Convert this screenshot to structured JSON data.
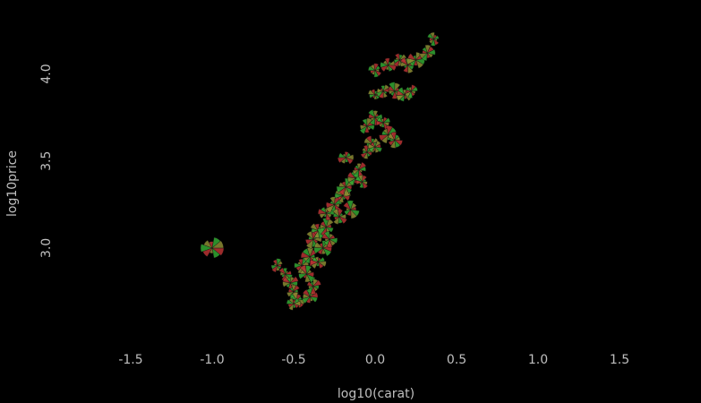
{
  "chart_data": {
    "type": "scatter",
    "xlabel": "log10(carat)",
    "ylabel": "log10price",
    "xlim": [
      -2.0,
      2.0
    ],
    "ylim": [
      2.47,
      4.27
    ],
    "x_ticks": [
      "-1.5",
      "-1.0",
      "-0.5",
      "0.0",
      "0.5",
      "1.0",
      "1.5"
    ],
    "x_tick_values": [
      -1.5,
      -1.0,
      -0.5,
      0.0,
      0.5,
      1.0,
      1.5
    ],
    "y_ticks": [
      "3.0",
      "3.5",
      "4.0"
    ],
    "y_tick_values": [
      3.0,
      3.5,
      4.0
    ],
    "background": "#000000",
    "grid": false,
    "glyph": "star",
    "colors": [
      "#b83232",
      "#32a832",
      "#8c8c32"
    ],
    "points": [
      {
        "x": -1.0,
        "y": 3.0,
        "r": 1.0
      },
      {
        "x": -0.6,
        "y": 2.9,
        "r": 0.6
      },
      {
        "x": -0.55,
        "y": 2.85,
        "r": 0.6
      },
      {
        "x": -0.52,
        "y": 2.8,
        "r": 0.7
      },
      {
        "x": -0.5,
        "y": 2.75,
        "r": 0.6
      },
      {
        "x": -0.48,
        "y": 2.7,
        "r": 0.7
      },
      {
        "x": -0.5,
        "y": 2.68,
        "r": 0.6
      },
      {
        "x": -0.45,
        "y": 2.9,
        "r": 0.7
      },
      {
        "x": -0.42,
        "y": 2.85,
        "r": 0.8
      },
      {
        "x": -0.4,
        "y": 2.72,
        "r": 0.7
      },
      {
        "x": -0.38,
        "y": 2.78,
        "r": 0.7
      },
      {
        "x": -0.4,
        "y": 2.95,
        "r": 0.8
      },
      {
        "x": -0.35,
        "y": 2.92,
        "r": 0.7
      },
      {
        "x": -0.38,
        "y": 3.05,
        "r": 0.8
      },
      {
        "x": -0.35,
        "y": 3.1,
        "r": 0.7
      },
      {
        "x": -0.32,
        "y": 3.0,
        "r": 0.8
      },
      {
        "x": -0.3,
        "y": 3.12,
        "r": 0.8
      },
      {
        "x": -0.28,
        "y": 3.05,
        "r": 0.7
      },
      {
        "x": -0.3,
        "y": 3.2,
        "r": 0.7
      },
      {
        "x": -0.25,
        "y": 3.25,
        "r": 0.8
      },
      {
        "x": -0.22,
        "y": 3.18,
        "r": 0.7
      },
      {
        "x": -0.2,
        "y": 3.3,
        "r": 0.7
      },
      {
        "x": -0.18,
        "y": 3.35,
        "r": 0.8
      },
      {
        "x": -0.15,
        "y": 3.22,
        "r": 0.8
      },
      {
        "x": -0.12,
        "y": 3.4,
        "r": 0.7
      },
      {
        "x": -0.1,
        "y": 3.45,
        "r": 0.7
      },
      {
        "x": -0.08,
        "y": 3.38,
        "r": 0.6
      },
      {
        "x": -0.18,
        "y": 3.52,
        "r": 0.7
      },
      {
        "x": -0.05,
        "y": 3.55,
        "r": 0.6
      },
      {
        "x": -0.02,
        "y": 3.6,
        "r": 0.7
      },
      {
        "x": 0.0,
        "y": 3.58,
        "r": 0.6
      },
      {
        "x": -0.05,
        "y": 3.7,
        "r": 0.7
      },
      {
        "x": 0.0,
        "y": 3.75,
        "r": 0.7
      },
      {
        "x": 0.05,
        "y": 3.72,
        "r": 0.6
      },
      {
        "x": 0.08,
        "y": 3.65,
        "r": 0.8
      },
      {
        "x": 0.12,
        "y": 3.62,
        "r": 0.7
      },
      {
        "x": 0.0,
        "y": 3.88,
        "r": 0.6
      },
      {
        "x": 0.05,
        "y": 3.9,
        "r": 0.6
      },
      {
        "x": 0.12,
        "y": 3.9,
        "r": 0.8
      },
      {
        "x": 0.18,
        "y": 3.88,
        "r": 0.7
      },
      {
        "x": 0.22,
        "y": 3.9,
        "r": 0.6
      },
      {
        "x": 0.0,
        "y": 4.02,
        "r": 0.6
      },
      {
        "x": 0.08,
        "y": 4.05,
        "r": 0.7
      },
      {
        "x": 0.15,
        "y": 4.08,
        "r": 0.6
      },
      {
        "x": 0.2,
        "y": 4.05,
        "r": 0.7
      },
      {
        "x": 0.25,
        "y": 4.08,
        "r": 0.8
      },
      {
        "x": 0.32,
        "y": 4.12,
        "r": 0.7
      },
      {
        "x": 0.36,
        "y": 4.2,
        "r": 0.6
      }
    ]
  }
}
